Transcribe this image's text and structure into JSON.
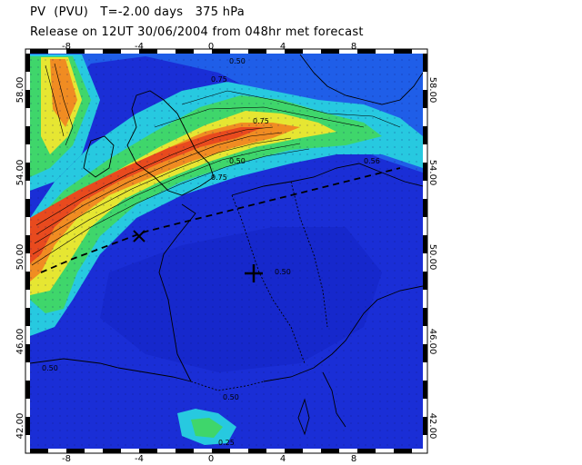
{
  "header": {
    "title": "PV  (PVU)   T=-2.00 days   375 hPa",
    "subtitle": "Release on 12UT 30/06/2004 from 048hr met forecast"
  },
  "map": {
    "variable": "PV (PVU)",
    "level_hpa": 375,
    "lon_range": [
      -10,
      12
    ],
    "lat_range": [
      41.5,
      59.5
    ],
    "lon_ticks": [
      "-8",
      "-4",
      "0",
      "4",
      "8"
    ],
    "lat_ticks": [
      "58.00",
      "54.00",
      "50.00",
      "46.00",
      "42.00"
    ],
    "contour_labels": [
      "0.50",
      "0.75",
      "0.75",
      "0.50",
      "0.56",
      "0.75",
      "0.50",
      "0.50",
      "0.50",
      "0.25"
    ],
    "colors": {
      "background_low": "#1a2ed6",
      "deep_low": "#0e14a6",
      "mid": "#1f74f0",
      "cyan": "#27c9e0",
      "green": "#3fd66b",
      "yellow": "#e6e632",
      "orange": "#f08c22",
      "red": "#e84a1e"
    },
    "markers": [
      {
        "symbol": "+",
        "name": "release-site"
      },
      {
        "symbol": "x",
        "name": "trajectory-point"
      }
    ]
  }
}
